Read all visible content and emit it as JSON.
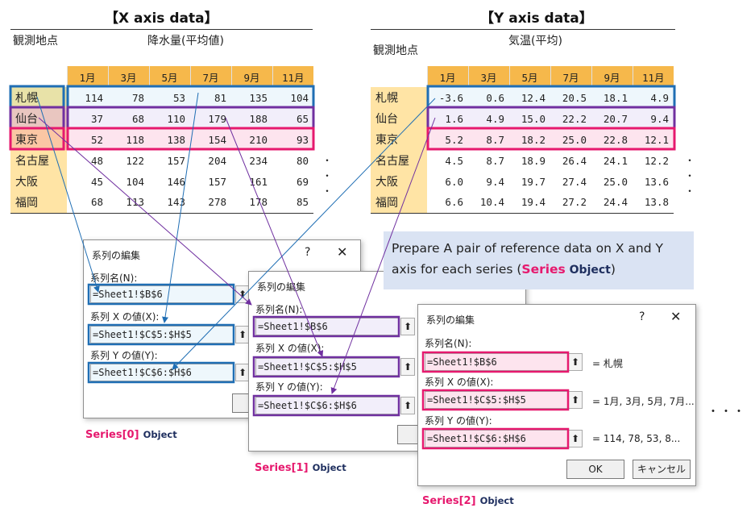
{
  "titles": {
    "x": "【X axis data】",
    "y": "【Y axis data】"
  },
  "x_table": {
    "header_left": "観測地点",
    "header_right": "降水量(平均値)",
    "months": [
      "1月",
      "3月",
      "5月",
      "7月",
      "9月",
      "11月"
    ],
    "rows": [
      {
        "city": "札幌",
        "values": [
          "114",
          "78",
          "53",
          "81",
          "135",
          "104"
        ]
      },
      {
        "city": "仙台",
        "values": [
          "37",
          "68",
          "110",
          "179",
          "188",
          "65"
        ]
      },
      {
        "city": "東京",
        "values": [
          "52",
          "118",
          "138",
          "154",
          "210",
          "93"
        ]
      },
      {
        "city": "名古屋",
        "values": [
          "48",
          "122",
          "157",
          "204",
          "234",
          "80"
        ]
      },
      {
        "city": "大阪",
        "values": [
          "45",
          "104",
          "146",
          "157",
          "161",
          "69"
        ]
      },
      {
        "city": "福岡",
        "values": [
          "68",
          "113",
          "143",
          "278",
          "178",
          "85"
        ]
      }
    ]
  },
  "y_table": {
    "header_left": "観測地点",
    "header_right": "気温(平均)",
    "months": [
      "1月",
      "3月",
      "5月",
      "7月",
      "9月",
      "11月"
    ],
    "rows": [
      {
        "city": "札幌",
        "values": [
          "-3.6",
          "0.6",
          "12.4",
          "20.5",
          "18.1",
          "4.9"
        ]
      },
      {
        "city": "仙台",
        "values": [
          "1.6",
          "4.9",
          "15.0",
          "22.2",
          "20.7",
          "9.4"
        ]
      },
      {
        "city": "東京",
        "values": [
          "5.2",
          "8.7",
          "18.2",
          "25.0",
          "22.8",
          "12.1"
        ]
      },
      {
        "city": "名古屋",
        "values": [
          "4.5",
          "8.7",
          "18.9",
          "26.4",
          "24.1",
          "12.2"
        ]
      },
      {
        "city": "大阪",
        "values": [
          "6.0",
          "9.4",
          "19.7",
          "27.4",
          "25.0",
          "13.6"
        ]
      },
      {
        "city": "福岡",
        "values": [
          "6.6",
          "10.4",
          "19.4",
          "27.2",
          "24.4",
          "13.8"
        ]
      }
    ]
  },
  "dialog": {
    "title": "系列の編集",
    "help": "?",
    "close": "✕",
    "name_label": "系列名(N):",
    "x_label": "系列 X の値(X):",
    "y_label": "系列 Y の値(Y):",
    "pick_icon": "⬆",
    "ok": "OK",
    "cancel": "キャンセル"
  },
  "dialogs": [
    {
      "name": "=Sheet1!$B$6",
      "x": "=Sheet1!$C$5:$H$5",
      "y": "=Sheet1!$C$6:$H$6"
    },
    {
      "name": "=Sheet1!$B$6",
      "x": "=Sheet1!$C$5:$H$5",
      "y": "=Sheet1!$C$6:$H$6"
    },
    {
      "name": "=Sheet1!$B$6",
      "x": "=Sheet1!$C$5:$H$5",
      "y": "=Sheet1!$C$6:$H$6",
      "name_note": "= 札幌",
      "x_note": "= 1月, 3月, 5月, 7月...",
      "y_note": "= 114, 78, 53, 8..."
    }
  ],
  "captions": [
    {
      "red": "Series[0]",
      "navy": "Object"
    },
    {
      "red": "Series[1]",
      "navy": "Object"
    },
    {
      "red": "Series[2]",
      "navy": "Object"
    }
  ],
  "note": {
    "prefix": "Prepare A pair of reference data on X and Y axis for each series (",
    "red": "Series",
    "navy": " Object",
    "suffix": ")"
  },
  "ellipsis": "・・・",
  "vert_dots": "・",
  "colors": {
    "blue": "#1f6eb4",
    "purple": "#7030a0",
    "red": "#e6196e",
    "orange": "#f6b84b",
    "light_orange": "#ffe4a5"
  }
}
